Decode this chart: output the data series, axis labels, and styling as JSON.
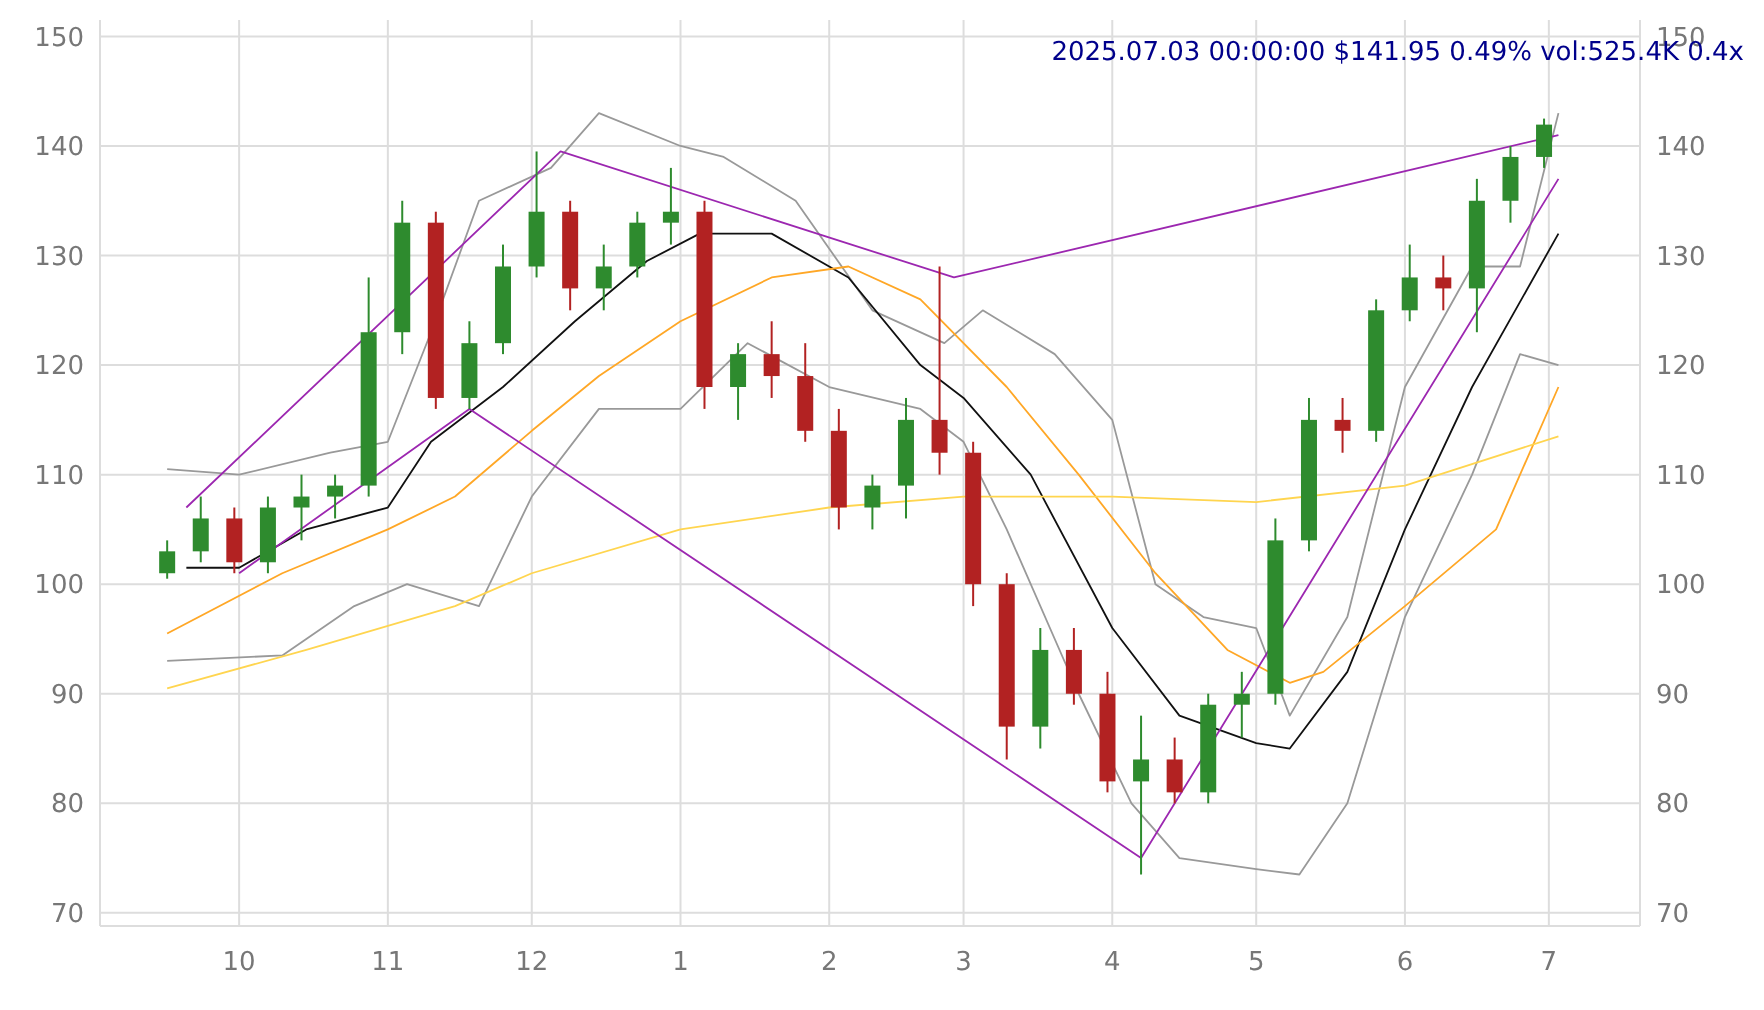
{
  "chart_data": {
    "type": "candlestick",
    "title": "2025.07.03 00:00:00 $141.95 0.49% vol:525.4K 0.4x",
    "x": [
      "2024-09-16",
      "2024-09-23",
      "2024-09-30",
      "2024-10-07",
      "2024-10-14",
      "2024-10-21",
      "2024-10-28",
      "2024-11-04",
      "2024-11-11",
      "2024-11-18",
      "2024-11-25",
      "2024-12-02",
      "2024-12-09",
      "2024-12-16",
      "2024-12-23",
      "2024-12-30",
      "2025-01-06",
      "2025-01-13",
      "2025-01-20",
      "2025-01-27",
      "2025-02-03",
      "2025-02-10",
      "2025-02-17",
      "2025-02-24",
      "2025-03-03",
      "2025-03-10",
      "2025-03-17",
      "2025-03-24",
      "2025-03-31",
      "2025-04-07",
      "2025-04-14",
      "2025-04-21",
      "2025-04-28",
      "2025-05-05",
      "2025-05-12",
      "2025-05-19",
      "2025-05-26",
      "2025-06-02",
      "2025-06-09",
      "2025-06-16",
      "2025-06-23",
      "2025-06-30"
    ],
    "ohlc": [
      [
        101,
        104,
        100.5,
        103
      ],
      [
        103,
        108,
        102,
        106
      ],
      [
        106,
        107,
        101,
        102
      ],
      [
        102,
        108,
        101,
        107
      ],
      [
        107,
        110,
        104,
        108
      ],
      [
        108,
        110,
        106,
        109
      ],
      [
        109,
        128,
        108,
        123
      ],
      [
        123,
        135,
        121,
        133
      ],
      [
        133,
        134,
        116,
        117
      ],
      [
        117,
        124,
        116,
        122
      ],
      [
        122,
        131,
        121,
        129
      ],
      [
        129,
        139.5,
        128,
        134
      ],
      [
        134,
        135,
        125,
        127
      ],
      [
        127,
        131,
        125,
        129
      ],
      [
        129,
        134,
        128,
        133
      ],
      [
        133,
        138,
        131,
        134
      ],
      [
        134,
        135,
        116,
        118
      ],
      [
        118,
        122,
        115,
        121
      ],
      [
        121,
        124,
        117,
        119
      ],
      [
        119,
        122,
        113,
        114
      ],
      [
        114,
        116,
        105,
        107
      ],
      [
        107,
        110,
        105,
        109
      ],
      [
        109,
        117,
        106,
        115
      ],
      [
        115,
        129,
        110,
        112
      ],
      [
        112,
        113,
        98,
        100
      ],
      [
        100,
        101,
        84,
        87
      ],
      [
        87,
        96,
        85,
        94
      ],
      [
        94,
        96,
        89,
        90
      ],
      [
        90,
        92,
        81,
        82
      ],
      [
        82,
        88,
        73.5,
        84
      ],
      [
        84,
        86,
        80,
        81
      ],
      [
        81,
        90,
        80,
        89
      ],
      [
        89,
        92,
        86,
        90
      ],
      [
        90,
        106,
        89,
        104
      ],
      [
        104,
        117,
        103,
        115
      ],
      [
        115,
        117,
        112,
        114
      ],
      [
        114,
        126,
        113,
        125
      ],
      [
        125,
        131,
        124,
        128
      ],
      [
        128,
        130,
        125,
        127
      ],
      [
        127,
        137,
        123,
        135
      ],
      [
        135,
        140,
        133,
        139
      ],
      [
        139,
        142.5,
        138,
        141.95
      ]
    ],
    "colors": [
      "#2e8b2e",
      "#2e8b2e",
      "#b22222",
      "#2e8b2e",
      "#2e8b2e",
      "#2e8b2e",
      "#2e8b2e",
      "#2e8b2e",
      "#b22222",
      "#2e8b2e",
      "#2e8b2e",
      "#2e8b2e",
      "#b22222",
      "#2e8b2e",
      "#2e8b2e",
      "#2e8b2e",
      "#b22222",
      "#2e8b2e",
      "#b22222",
      "#b22222",
      "#b22222",
      "#2e8b2e",
      "#2e8b2e",
      "#b22222",
      "#b22222",
      "#b22222",
      "#2e8b2e",
      "#b22222",
      "#b22222",
      "#2e8b2e",
      "#b22222",
      "#2e8b2e",
      "#2e8b2e",
      "#2e8b2e",
      "#2e8b2e",
      "#b22222",
      "#2e8b2e",
      "#2e8b2e",
      "#b22222",
      "#2e8b2e",
      "#2e8b2e",
      "#2e8b2e"
    ],
    "series": [
      {
        "type": "line",
        "color": "#999999",
        "x": [
          "2024-09-16",
          "2024-10-01",
          "2024-10-20",
          "2024-11-01",
          "2024-11-10",
          "2024-11-20",
          "2024-12-05",
          "2024-12-15",
          "2025-01-01",
          "2025-01-10",
          "2025-01-25",
          "2025-02-10",
          "2025-02-25",
          "2025-03-05",
          "2025-03-20",
          "2025-04-01",
          "2025-04-10",
          "2025-04-20",
          "2025-05-01",
          "2025-05-08",
          "2025-05-20",
          "2025-06-01",
          "2025-06-15",
          "2025-06-25",
          "2025-07-03"
        ],
        "values": [
          110.5,
          110,
          112,
          113,
          123,
          135,
          138,
          143,
          140,
          139,
          135,
          125,
          122,
          125,
          121,
          115,
          100,
          97,
          96,
          88,
          97,
          118,
          129,
          129,
          143
        ]
      },
      {
        "type": "line",
        "color": "#999999",
        "x": [
          "2024-09-16",
          "2024-10-10",
          "2024-10-25",
          "2024-11-05",
          "2024-11-20",
          "2024-12-01",
          "2024-12-15",
          "2025-01-01",
          "2025-01-15",
          "2025-02-01",
          "2025-02-20",
          "2025-03-01",
          "2025-03-10",
          "2025-03-25",
          "2025-04-05",
          "2025-04-15",
          "2025-05-01",
          "2025-05-10",
          "2025-05-20",
          "2025-06-01",
          "2025-06-15",
          "2025-06-25",
          "2025-07-03"
        ],
        "values": [
          93,
          93.5,
          98,
          100,
          98,
          108,
          116,
          116,
          122,
          118,
          116,
          113,
          105,
          90,
          80,
          75,
          74,
          73.5,
          80,
          97,
          110,
          121,
          120
        ]
      },
      {
        "type": "line",
        "color": "#111111",
        "x": [
          "2024-09-20",
          "2024-10-01",
          "2024-10-15",
          "2024-11-01",
          "2024-11-10",
          "2024-11-25",
          "2024-12-10",
          "2024-12-25",
          "2025-01-05",
          "2025-01-20",
          "2025-02-05",
          "2025-02-20",
          "2025-03-01",
          "2025-03-15",
          "2025-04-01",
          "2025-04-15",
          "2025-05-01",
          "2025-05-08",
          "2025-05-20",
          "2025-06-01",
          "2025-06-15",
          "2025-07-03"
        ],
        "values": [
          101.5,
          101.5,
          105,
          107,
          113,
          118,
          124,
          129.5,
          132,
          132,
          128,
          120,
          117,
          110,
          96,
          88,
          85.5,
          85,
          92,
          105,
          118,
          132
        ]
      },
      {
        "type": "line",
        "color": "#ffa726",
        "x": [
          "2024-09-16",
          "2024-10-10",
          "2024-11-01",
          "2024-11-15",
          "2024-12-01",
          "2024-12-15",
          "2025-01-01",
          "2025-01-20",
          "2025-02-05",
          "2025-02-20",
          "2025-03-10",
          "2025-03-25",
          "2025-04-10",
          "2025-04-25",
          "2025-05-08",
          "2025-05-15",
          "2025-06-01",
          "2025-06-20",
          "2025-07-03"
        ],
        "values": [
          95.5,
          101,
          105,
          108,
          114,
          119,
          124,
          128,
          129,
          126,
          118,
          110,
          101,
          94,
          91,
          92,
          98,
          105,
          118
        ]
      },
      {
        "type": "line",
        "color": "#ffd54f",
        "x": [
          "2024-09-16",
          "2024-10-15",
          "2024-11-15",
          "2024-12-01",
          "2025-01-01",
          "2025-02-01",
          "2025-03-01",
          "2025-04-01",
          "2025-05-01",
          "2025-06-01",
          "2025-07-03"
        ],
        "values": [
          90.5,
          94,
          98,
          101,
          105,
          107,
          108,
          108,
          107.5,
          109,
          113.5
        ]
      },
      {
        "type": "line",
        "color": "#9c27b0",
        "x": [
          "2024-09-20",
          "2024-12-07",
          "2025-02-27",
          "2025-07-03"
        ],
        "values": [
          107,
          139.5,
          128,
          141
        ]
      },
      {
        "type": "line",
        "color": "#9c27b0",
        "x": [
          "2024-10-01",
          "2024-11-18",
          "2025-04-07",
          "2025-07-03"
        ],
        "values": [
          101,
          116,
          75,
          137
        ]
      }
    ],
    "xlim": [
      "2024-09-02",
      "2025-07-20"
    ],
    "xticks": [
      {
        "value": "2024-10-01",
        "label": "10"
      },
      {
        "value": "2024-11-01",
        "label": "11"
      },
      {
        "value": "2024-12-01",
        "label": "12"
      },
      {
        "value": "2025-01-01",
        "label": "1"
      },
      {
        "value": "2025-02-01",
        "label": "2"
      },
      {
        "value": "2025-03-01",
        "label": "3"
      },
      {
        "value": "2025-04-01",
        "label": "4"
      },
      {
        "value": "2025-05-01",
        "label": "5"
      },
      {
        "value": "2025-06-01",
        "label": "6"
      },
      {
        "value": "2025-07-01",
        "label": "7"
      }
    ],
    "ylim": [
      68.8,
      151.5
    ],
    "yticks": [
      70,
      80,
      90,
      100,
      110,
      120,
      130,
      140,
      150
    ],
    "y2lim": [
      68.8,
      151.5
    ],
    "y2ticks": [
      70,
      80,
      90,
      100,
      110,
      120,
      130,
      140,
      150
    ],
    "grid": true
  }
}
